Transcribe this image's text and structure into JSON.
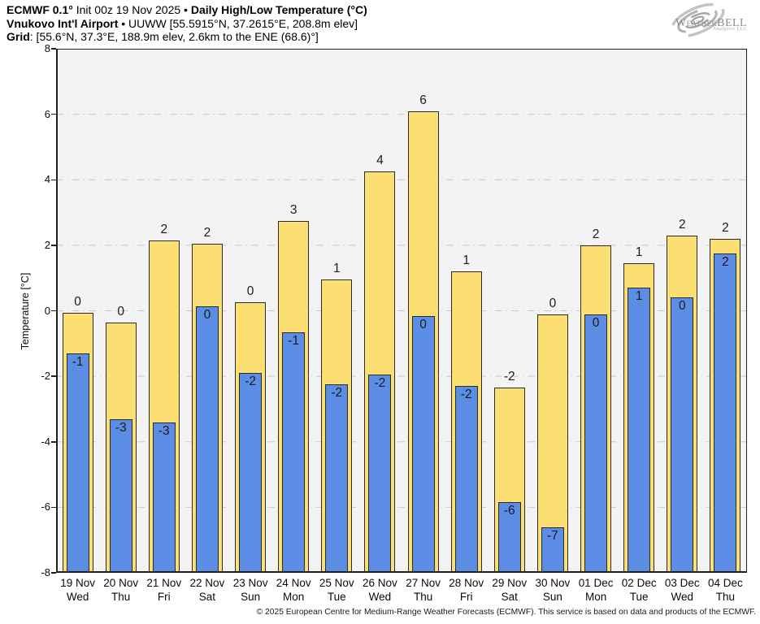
{
  "header": {
    "line1": {
      "bold1": "ECMWF 0.1°",
      "normal1": " Init 00z 19 Nov 2025 • ",
      "bold2": "Daily High/Low Temperature (°C)"
    },
    "line2": {
      "bold": "Vnukovo Int'l Airport",
      "normal": " • UUWW [55.5915°N, 37.2615°E, 208.8m elev]"
    },
    "line3": {
      "bold": "Grid",
      "normal": ": [55.6°N, 37.3°E, 188.9m elev, 2.6km to the ENE (68.6)°]"
    }
  },
  "logo": {
    "part_w": "W",
    "part_eather": "EATHER",
    "part_bell": "BELL",
    "subtitle": "Analytics LLC"
  },
  "footer": {
    "copyright": "© 2025 European Centre for Medium-Range Weather Forecasts (ECMWF). This service is based on data and products of the ECMWF."
  },
  "colors": {
    "high": "#FCDF72",
    "low": "#5C8DE5",
    "bar_border": "#2b2b2b",
    "grid": "#c9c9c9",
    "plot_bg": "#f3f3f3",
    "axis": "#1f1f1f"
  },
  "chart_data": {
    "type": "bar",
    "title": "Daily High/Low Temperature (°C)",
    "xlabel": "",
    "ylabel": "Temperature [°C]",
    "ylim": [
      -8,
      8
    ],
    "yticks": [
      8,
      6,
      4,
      2,
      0,
      -2,
      -4,
      -6,
      -8
    ],
    "grid": true,
    "baseline": -8,
    "legend_position": "none",
    "categories": [
      {
        "date": "19 Nov",
        "day": "Wed"
      },
      {
        "date": "20 Nov",
        "day": "Thu"
      },
      {
        "date": "21 Nov",
        "day": "Fri"
      },
      {
        "date": "22 Nov",
        "day": "Sat"
      },
      {
        "date": "23 Nov",
        "day": "Sun"
      },
      {
        "date": "24 Nov",
        "day": "Mon"
      },
      {
        "date": "25 Nov",
        "day": "Tue"
      },
      {
        "date": "26 Nov",
        "day": "Wed"
      },
      {
        "date": "27 Nov",
        "day": "Thu"
      },
      {
        "date": "28 Nov",
        "day": "Fri"
      },
      {
        "date": "29 Nov",
        "day": "Sat"
      },
      {
        "date": "30 Nov",
        "day": "Sun"
      },
      {
        "date": "01 Dec",
        "day": "Mon"
      },
      {
        "date": "02 Dec",
        "day": "Tue"
      },
      {
        "date": "03 Dec",
        "day": "Wed"
      },
      {
        "date": "04 Dec",
        "day": "Thu"
      }
    ],
    "series": [
      {
        "name": "Daily High",
        "color": "#FCDF72",
        "values": [
          -0.05,
          -0.35,
          2.15,
          2.05,
          0.25,
          2.75,
          0.95,
          4.25,
          6.1,
          1.2,
          -2.35,
          -0.1,
          2.0,
          1.45,
          2.3,
          2.2
        ],
        "labels": [
          "0",
          "0",
          "2",
          "2",
          "0",
          "3",
          "1",
          "4",
          "6",
          "1",
          "-2",
          "0",
          "2",
          "1",
          "2",
          "2"
        ]
      },
      {
        "name": "Daily Low",
        "color": "#5C8DE5",
        "values": [
          -1.3,
          -3.3,
          -3.4,
          0.15,
          -1.9,
          -0.65,
          -2.25,
          -1.95,
          -0.15,
          -2.3,
          -5.85,
          -6.6,
          -0.1,
          0.7,
          0.4,
          1.75
        ],
        "labels": [
          "-1",
          "-3",
          "-3",
          "0",
          "-2",
          "-1",
          "-2",
          "-2",
          "0",
          "-2",
          "-6",
          "-7",
          "0",
          "1",
          "0",
          "2"
        ]
      }
    ]
  }
}
